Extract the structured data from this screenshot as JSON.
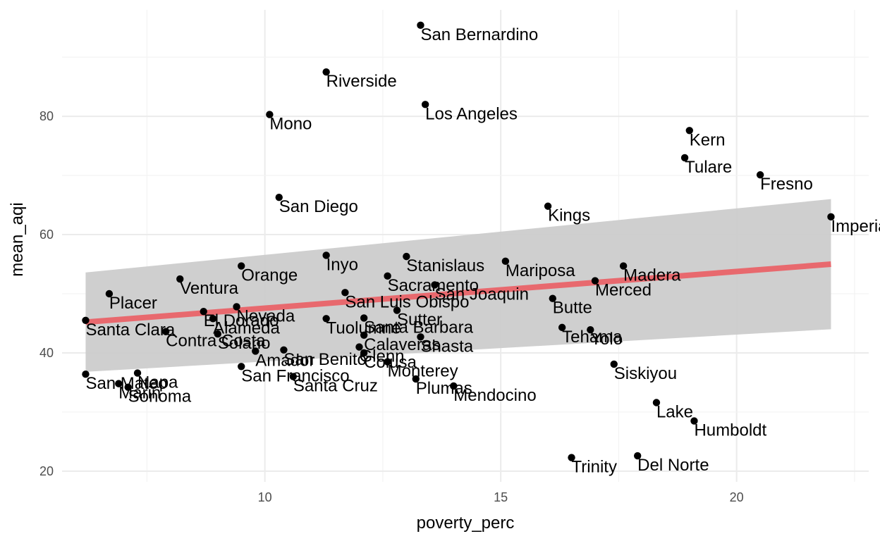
{
  "chart_data": {
    "type": "scatter",
    "title": "",
    "xlabel": "poverty_perc",
    "ylabel": "mean_aqi",
    "xlim": [
      5.7,
      22.8
    ],
    "ylim": [
      18.2,
      98.0
    ],
    "x_ticks": [
      10,
      15,
      20
    ],
    "y_ticks": [
      20,
      40,
      60,
      80
    ],
    "grid": true,
    "point_color": "#000000",
    "trend": {
      "method": "lm",
      "color": "#e8696e",
      "band_color": "#cccccc",
      "x": [
        6.2,
        22.0
      ],
      "y": [
        45.2,
        55.0
      ],
      "band_lower": [
        36.8,
        44.0
      ],
      "band_upper": [
        53.6,
        66.0
      ]
    },
    "points": [
      {
        "label": "San Bernardino",
        "x": 13.3,
        "y": 95.4
      },
      {
        "label": "Riverside",
        "x": 11.3,
        "y": 87.5
      },
      {
        "label": "Los Angeles",
        "x": 13.4,
        "y": 82.0
      },
      {
        "label": "Mono",
        "x": 10.1,
        "y": 80.3
      },
      {
        "label": "Kern",
        "x": 19.0,
        "y": 77.6
      },
      {
        "label": "Tulare",
        "x": 18.9,
        "y": 73.0
      },
      {
        "label": "Fresno",
        "x": 20.5,
        "y": 70.1
      },
      {
        "label": "San Diego",
        "x": 10.3,
        "y": 66.3
      },
      {
        "label": "Kings",
        "x": 16.0,
        "y": 64.8
      },
      {
        "label": "Imperial",
        "x": 22.0,
        "y": 63.0
      },
      {
        "label": "Inyo",
        "x": 11.3,
        "y": 56.5
      },
      {
        "label": "Stanislaus",
        "x": 13.0,
        "y": 56.3
      },
      {
        "label": "Mariposa",
        "x": 15.1,
        "y": 55.5
      },
      {
        "label": "Orange",
        "x": 9.5,
        "y": 54.7
      },
      {
        "label": "Madera",
        "x": 17.6,
        "y": 54.7
      },
      {
        "label": "Sacramento",
        "x": 12.6,
        "y": 53.0
      },
      {
        "label": "Ventura",
        "x": 8.2,
        "y": 52.5
      },
      {
        "label": "Merced",
        "x": 17.0,
        "y": 52.2
      },
      {
        "label": "San Joaquin",
        "x": 13.6,
        "y": 51.5
      },
      {
        "label": "San Luis Obispo",
        "x": 11.7,
        "y": 50.2
      },
      {
        "label": "Placer",
        "x": 6.7,
        "y": 50.0
      },
      {
        "label": "Butte",
        "x": 16.1,
        "y": 49.2
      },
      {
        "label": "Nevada",
        "x": 9.4,
        "y": 47.8
      },
      {
        "label": "Sutter",
        "x": 12.8,
        "y": 47.2
      },
      {
        "label": "El Dorado",
        "x": 8.7,
        "y": 47.0
      },
      {
        "label": "Alameda",
        "x": 8.9,
        "y": 45.8
      },
      {
        "label": "Santa Barbara",
        "x": 12.1,
        "y": 45.9
      },
      {
        "label": "Tuolumne",
        "x": 11.3,
        "y": 45.8
      },
      {
        "label": "Santa Clara",
        "x": 6.2,
        "y": 45.5
      },
      {
        "label": "Tehama",
        "x": 16.3,
        "y": 44.3
      },
      {
        "label": "Yolo",
        "x": 16.9,
        "y": 43.9
      },
      {
        "label": "Contra Costa",
        "x": 7.9,
        "y": 43.6
      },
      {
        "label": "Solano",
        "x": 9.0,
        "y": 43.2
      },
      {
        "label": "Calaveras",
        "x": 12.1,
        "y": 43.0
      },
      {
        "label": "Shasta",
        "x": 13.3,
        "y": 42.7
      },
      {
        "label": "Glenn",
        "x": 12.0,
        "y": 41.0
      },
      {
        "label": "Amador",
        "x": 9.8,
        "y": 40.3
      },
      {
        "label": "San Benito",
        "x": 10.4,
        "y": 40.5
      },
      {
        "label": "Colusa",
        "x": 12.1,
        "y": 40.0
      },
      {
        "label": "Monterey",
        "x": 12.6,
        "y": 38.5
      },
      {
        "label": "Siskiyou",
        "x": 17.4,
        "y": 38.1
      },
      {
        "label": "San Francisco",
        "x": 9.5,
        "y": 37.7
      },
      {
        "label": "San Mateo",
        "x": 6.2,
        "y": 36.4
      },
      {
        "label": "Napa",
        "x": 7.3,
        "y": 36.6
      },
      {
        "label": "Santa Cruz",
        "x": 10.6,
        "y": 36.0
      },
      {
        "label": "Plumas",
        "x": 13.2,
        "y": 35.6
      },
      {
        "label": "Marin",
        "x": 6.9,
        "y": 34.8
      },
      {
        "label": "Mendocino",
        "x": 14.0,
        "y": 34.4
      },
      {
        "label": "Sonoma",
        "x": 7.1,
        "y": 34.2
      },
      {
        "label": "Lake",
        "x": 18.3,
        "y": 31.6
      },
      {
        "label": "Humboldt",
        "x": 19.1,
        "y": 28.5
      },
      {
        "label": "Del Norte",
        "x": 17.9,
        "y": 22.6
      },
      {
        "label": "Trinity",
        "x": 16.5,
        "y": 22.3
      }
    ]
  }
}
